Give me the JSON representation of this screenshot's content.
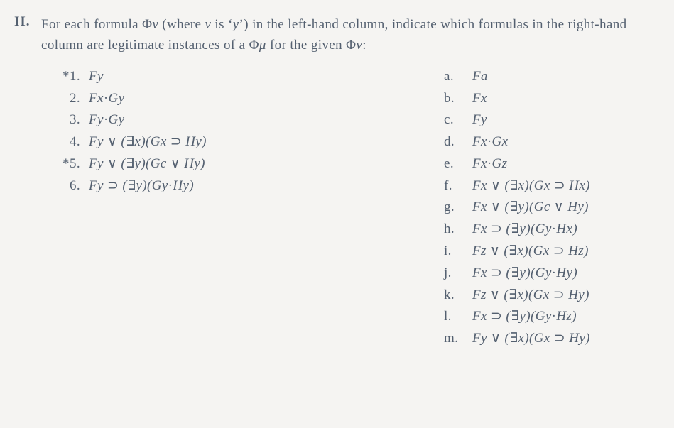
{
  "colors": {
    "background": "#f5f4f2",
    "text": "#546070"
  },
  "typography": {
    "font_family": "Century Schoolbook, Times New Roman, serif",
    "base_font_size_pt": 14,
    "line_height": 1.62
  },
  "heading": {
    "label": "II.",
    "text": "For each formula Φν (where ν is ‘y’) in the left-hand column, indicate which formulas in the right-hand column are legitimate instances of a Φμ for the given Φν:"
  },
  "left_items": [
    {
      "label": "*1.",
      "starred": true,
      "formula": "Fy"
    },
    {
      "label": "2.",
      "starred": false,
      "formula": "Fx·Gy"
    },
    {
      "label": "3.",
      "starred": false,
      "formula": "Fy·Gy"
    },
    {
      "label": "4.",
      "starred": false,
      "formula": "Fy ∨ (∃x)(Gx ⊃ Hy)"
    },
    {
      "label": "*5.",
      "starred": true,
      "formula": "Fy ∨ (∃y)(Gc ∨ Hy)"
    },
    {
      "label": "6.",
      "starred": false,
      "formula": "Fy ⊃ (∃y)(Gy·Hy)"
    }
  ],
  "right_items": [
    {
      "label": "a.",
      "formula": "Fa"
    },
    {
      "label": "b.",
      "formula": "Fx"
    },
    {
      "label": "c.",
      "formula": "Fy"
    },
    {
      "label": "d.",
      "formula": "Fx·Gx"
    },
    {
      "label": "e.",
      "formula": "Fx·Gz"
    },
    {
      "label": "f.",
      "formula": "Fx ∨ (∃x)(Gx ⊃ Hx)"
    },
    {
      "label": "g.",
      "formula": "Fx ∨ (∃y)(Gc ∨ Hy)"
    },
    {
      "label": "h.",
      "formula": "Fx ⊃ (∃y)(Gy·Hx)"
    },
    {
      "label": "i.",
      "formula": "Fz ∨ (∃x)(Gx ⊃ Hz)"
    },
    {
      "label": "j.",
      "formula": "Fx ⊃ (∃y)(Gy·Hy)"
    },
    {
      "label": "k.",
      "formula": "Fz ∨ (∃x)(Gx ⊃ Hy)"
    },
    {
      "label": "l.",
      "formula": "Fx ⊃ (∃y)(Gy·Hz)"
    },
    {
      "label": "m.",
      "formula": "Fy ∨ (∃x)(Gx ⊃ Hy)"
    }
  ]
}
